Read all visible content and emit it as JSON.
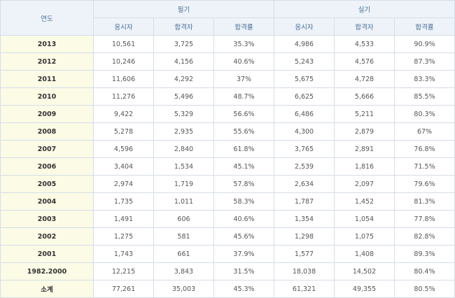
{
  "header": {
    "year": "연도",
    "written": "필기",
    "practical": "실기",
    "applicants": "응시자",
    "passers": "합격자",
    "pass_rate": "합격률"
  },
  "rows": [
    {
      "year": "2013",
      "w_app": "10,561",
      "w_pass": "3,725",
      "w_rate": "35.3%",
      "p_app": "4,986",
      "p_pass": "4,533",
      "p_rate": "90.9%"
    },
    {
      "year": "2012",
      "w_app": "10,246",
      "w_pass": "4,156",
      "w_rate": "40.6%",
      "p_app": "5,243",
      "p_pass": "4,576",
      "p_rate": "87.3%"
    },
    {
      "year": "2011",
      "w_app": "11,606",
      "w_pass": "4,292",
      "w_rate": "37%",
      "p_app": "5,675",
      "p_pass": "4,728",
      "p_rate": "83.3%"
    },
    {
      "year": "2010",
      "w_app": "11,276",
      "w_pass": "5,496",
      "w_rate": "48.7%",
      "p_app": "6,625",
      "p_pass": "5,666",
      "p_rate": "85.5%"
    },
    {
      "year": "2009",
      "w_app": "9,422",
      "w_pass": "5,329",
      "w_rate": "56.6%",
      "p_app": "6,486",
      "p_pass": "5,211",
      "p_rate": "80.3%"
    },
    {
      "year": "2008",
      "w_app": "5,278",
      "w_pass": "2,935",
      "w_rate": "55.6%",
      "p_app": "4,300",
      "p_pass": "2,879",
      "p_rate": "67%"
    },
    {
      "year": "2007",
      "w_app": "4,596",
      "w_pass": "2,840",
      "w_rate": "61.8%",
      "p_app": "3,765",
      "p_pass": "2,891",
      "p_rate": "76.8%"
    },
    {
      "year": "2006",
      "w_app": "3,404",
      "w_pass": "1,534",
      "w_rate": "45.1%",
      "p_app": "2,539",
      "p_pass": "1,816",
      "p_rate": "71.5%"
    },
    {
      "year": "2005",
      "w_app": "2,974",
      "w_pass": "1,719",
      "w_rate": "57.8%",
      "p_app": "2,634",
      "p_pass": "2,097",
      "p_rate": "79.6%"
    },
    {
      "year": "2004",
      "w_app": "1,735",
      "w_pass": "1,011",
      "w_rate": "58.3%",
      "p_app": "1,787",
      "p_pass": "1,452",
      "p_rate": "81.3%"
    },
    {
      "year": "2003",
      "w_app": "1,491",
      "w_pass": "606",
      "w_rate": "40.6%",
      "p_app": "1,354",
      "p_pass": "1,054",
      "p_rate": "77.8%"
    },
    {
      "year": "2002",
      "w_app": "1,275",
      "w_pass": "581",
      "w_rate": "45.6%",
      "p_app": "1,298",
      "p_pass": "1,075",
      "p_rate": "82.8%"
    },
    {
      "year": "2001",
      "w_app": "1,743",
      "w_pass": "661",
      "w_rate": "37.9%",
      "p_app": "1,577",
      "p_pass": "1,408",
      "p_rate": "89.3%"
    },
    {
      "year": "1982.2000",
      "w_app": "12,215",
      "w_pass": "3,843",
      "w_rate": "31.5%",
      "p_app": "18,038",
      "p_pass": "14,502",
      "p_rate": "80.4%"
    },
    {
      "year": "소계",
      "w_app": "77,261",
      "w_pass": "35,003",
      "w_rate": "45.3%",
      "p_app": "61,321",
      "p_pass": "49,355",
      "p_rate": "80.5%"
    }
  ]
}
